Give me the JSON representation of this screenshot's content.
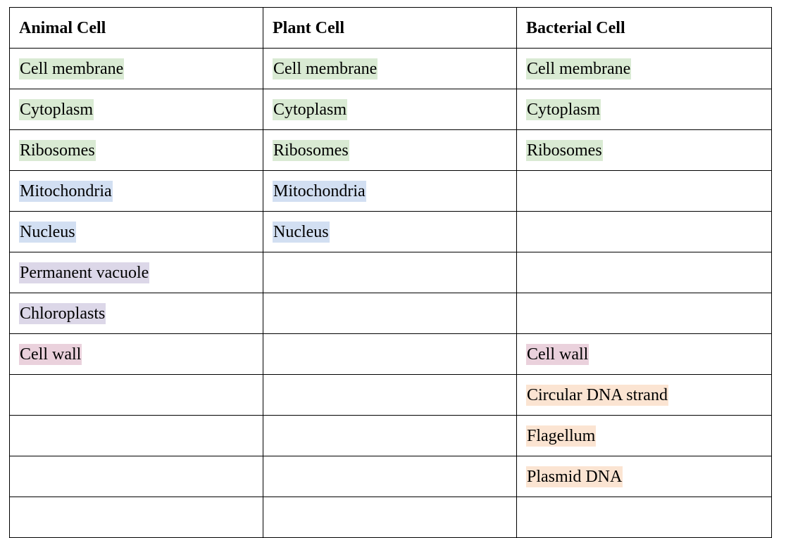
{
  "table": {
    "headers": [
      "Animal Cell",
      "Plant Cell",
      "Bacterial Cell"
    ],
    "rows": [
      [
        "Cell membrane",
        "Cell membrane",
        "Cell membrane"
      ],
      [
        "Cytoplasm",
        "Cytoplasm",
        "Cytoplasm"
      ],
      [
        "Ribosomes",
        "Ribosomes",
        "Ribosomes"
      ],
      [
        "Mitochondria",
        "Mitochondria",
        ""
      ],
      [
        "Nucleus",
        "Nucleus",
        ""
      ],
      [
        "Permanent vacuole",
        "",
        ""
      ],
      [
        "Chloroplasts",
        "",
        ""
      ],
      [
        "Cell wall",
        "",
        "Cell wall"
      ],
      [
        "",
        "",
        "Circular DNA strand"
      ],
      [
        "",
        "",
        "Flagellum"
      ],
      [
        "",
        "",
        "Plasmid DNA"
      ],
      [
        "",
        "",
        ""
      ]
    ],
    "highlights": [
      [
        "green",
        "green",
        "green"
      ],
      [
        "green",
        "green",
        "green"
      ],
      [
        "green",
        "green",
        "green"
      ],
      [
        "blue",
        "blue",
        ""
      ],
      [
        "blue",
        "blue",
        ""
      ],
      [
        "purple",
        "",
        ""
      ],
      [
        "purple",
        "",
        ""
      ],
      [
        "pink",
        "",
        "pink"
      ],
      [
        "",
        "",
        "orange"
      ],
      [
        "",
        "",
        "orange"
      ],
      [
        "",
        "",
        "orange"
      ],
      [
        "",
        "",
        ""
      ]
    ],
    "colors": {
      "green": "#d9ead3",
      "blue": "#d2dff2",
      "purple": "#dcd7e8",
      "pink": "#ead1dc",
      "orange": "#fbe4d2",
      "border": "#000000"
    }
  }
}
